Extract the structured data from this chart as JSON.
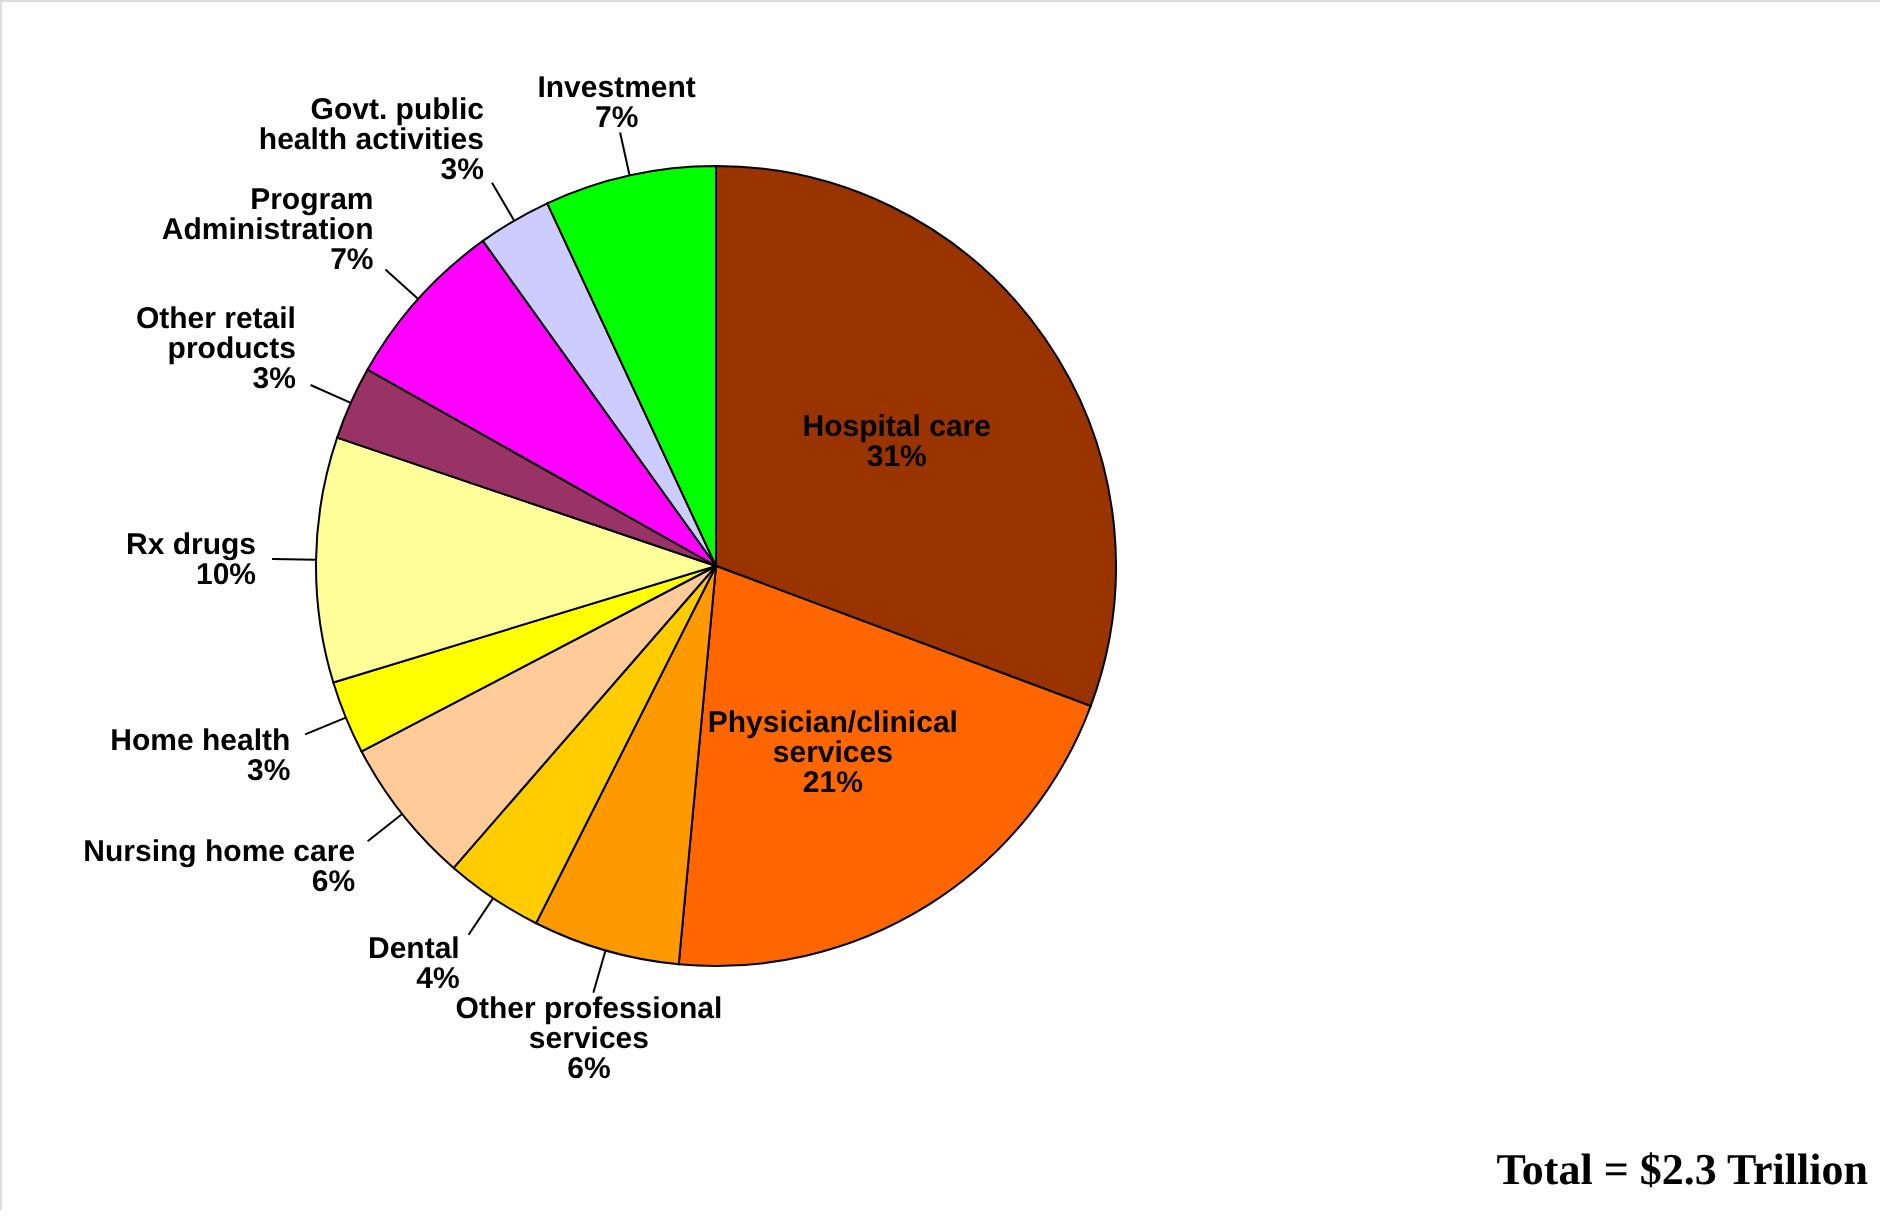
{
  "chart_data": {
    "type": "pie",
    "categories": [
      "Hospital care",
      "Physician/clinical services",
      "Other professional services",
      "Dental",
      "Nursing home care",
      "Home health",
      "Rx drugs",
      "Other retail products",
      "Program Administration",
      "Govt. public health activities",
      "Investment"
    ],
    "values": [
      31,
      21,
      6,
      4,
      6,
      3,
      10,
      3,
      7,
      3,
      7
    ],
    "value_labels": [
      "31%",
      "21%",
      "6%",
      "4%",
      "6%",
      "3%",
      "10%",
      "3%",
      "7%",
      "3%",
      "7%"
    ],
    "colors": [
      "#993300",
      "#ff6600",
      "#ff9900",
      "#ffcc00",
      "#ffcc99",
      "#ffff00",
      "#ffff99",
      "#993366",
      "#ff00ff",
      "#ccccff",
      "#00ff00"
    ],
    "annotations": [
      "Total = $2.3 Trillion"
    ]
  }
}
